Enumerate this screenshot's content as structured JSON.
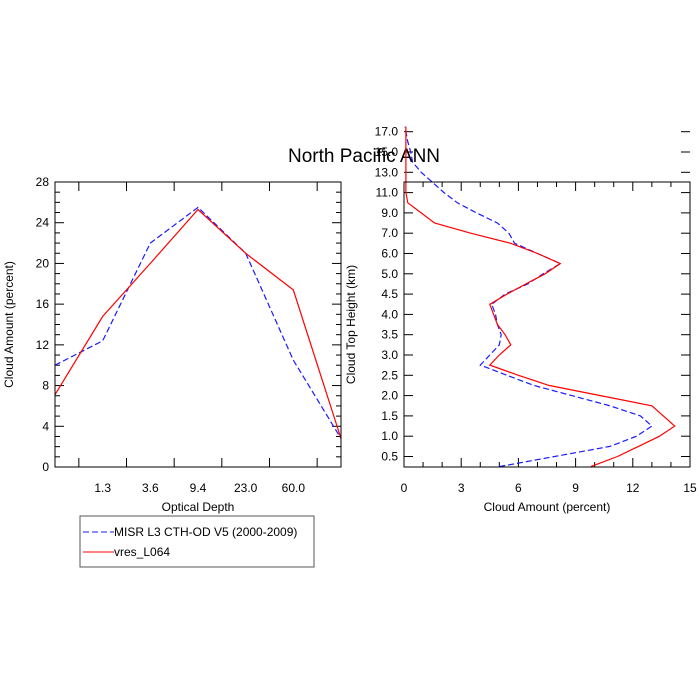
{
  "title": "North Pacific ANN",
  "colors": {
    "misr": "#1a1aff",
    "model": "#ff0000",
    "axis": "#000000"
  },
  "legend": {
    "entries": [
      {
        "label": "MISR L3 CTH-OD V5 (2000-2009)",
        "style": "dashed",
        "color": "#1a1aff"
      },
      {
        "label": "vres_L064",
        "style": "solid",
        "color": "#ff0000"
      }
    ]
  },
  "chart_data": [
    {
      "type": "line",
      "xlabel": "Optical Depth",
      "ylabel": "Cloud Amount (percent)",
      "x_tick_labels": [
        "1.3",
        "3.6",
        "9.4",
        "23.0",
        "60.0"
      ],
      "x_index_range": [
        0,
        6
      ],
      "ylim": [
        0,
        28
      ],
      "y_ticks": [
        0,
        4,
        8,
        12,
        16,
        20,
        24,
        28
      ],
      "series": [
        {
          "name": "MISR L3 CTH-OD V5 (2000-2009)",
          "style": "dashed",
          "x": [
            0,
            1.0,
            2.0,
            3.0,
            4.0,
            5.0,
            6.0
          ],
          "values": [
            10.0,
            12.4,
            22.0,
            25.5,
            21.0,
            10.5,
            2.8
          ]
        },
        {
          "name": "vres_L064",
          "style": "solid",
          "x": [
            0,
            1.0,
            2.0,
            3.0,
            4.0,
            5.0,
            6.0
          ],
          "values": [
            7.1,
            14.8,
            20.0,
            25.3,
            21.0,
            17.4,
            2.8
          ]
        }
      ]
    },
    {
      "type": "line",
      "xlabel": "Cloud Amount (percent)",
      "ylabel": "Cloud Top Height (km)",
      "xlim": [
        0,
        15
      ],
      "x_ticks": [
        0,
        3,
        6,
        9,
        12,
        15
      ],
      "y_tick_labels": [
        "0.5",
        "1.0",
        "1.5",
        "2.0",
        "2.5",
        "3.0",
        "3.5",
        "4.0",
        "4.5",
        "5.0",
        "6.0",
        "7.0",
        "9.0",
        "11.0",
        "13.0",
        "15.0",
        "17.0"
      ],
      "series": [
        {
          "name": "MISR L3 CTH-OD V5 (2000-2009)",
          "style": "dashed",
          "level_index": [
            0,
            0.5,
            1.0,
            1.5,
            2.0,
            2.5,
            3.0,
            3.5,
            4.0,
            4.5,
            5.0,
            5.5,
            6.0,
            6.5,
            7.0,
            7.5,
            8.0,
            8.5,
            9.0,
            9.5,
            10.0,
            10.5,
            11.0,
            11.5,
            12.0,
            12.5,
            13.0,
            13.5,
            14.0,
            14.5,
            15.0,
            15.5,
            16.0,
            16.5,
            16.75
          ],
          "values": [
            5.0,
            7.9,
            10.8,
            12.2,
            13.0,
            12.4,
            10.8,
            8.8,
            6.8,
            5.4,
            4.0,
            4.5,
            5.0,
            5.1,
            4.9,
            4.8,
            4.6,
            5.3,
            6.5,
            7.3,
            8.2,
            7.0,
            5.8,
            5.5,
            4.9,
            3.8,
            2.8,
            2.1,
            1.5,
            0.9,
            0.45,
            0.35,
            0.2,
            0.1,
            0.05
          ]
        },
        {
          "name": "vres_L064",
          "style": "solid",
          "level_index": [
            0,
            0.5,
            1.0,
            1.5,
            2.0,
            2.5,
            3.0,
            3.5,
            4.0,
            4.5,
            5.0,
            5.5,
            6.0,
            6.5,
            7.0,
            7.5,
            8.0,
            8.5,
            9.0,
            9.5,
            10.0,
            10.5,
            11.0,
            11.5,
            12.0,
            12.5,
            13.0,
            13.5,
            14.0,
            14.5,
            15.0,
            15.5,
            16.0,
            16.5,
            16.75
          ],
          "values": [
            9.8,
            11.2,
            12.3,
            13.4,
            14.2,
            13.6,
            13.0,
            10.3,
            7.6,
            6.0,
            4.5,
            5.0,
            5.6,
            5.3,
            4.9,
            4.7,
            4.5,
            5.4,
            6.4,
            7.4,
            8.2,
            7.0,
            5.6,
            3.5,
            1.6,
            0.9,
            0.2,
            0.1,
            0.1,
            0.1,
            0.1,
            0.1,
            0.1,
            0.1,
            0.1
          ]
        }
      ]
    }
  ]
}
